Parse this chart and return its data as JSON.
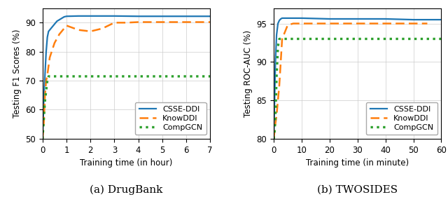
{
  "left": {
    "title": "(a) DrugBank",
    "xlabel": "Training time (in hour)",
    "ylabel": "Testing F1 Scores (%)",
    "xlim": [
      0,
      7
    ],
    "ylim": [
      50,
      95
    ],
    "yticks": [
      50,
      60,
      70,
      80,
      90
    ],
    "xticks": [
      0,
      1,
      2,
      3,
      4,
      5,
      6,
      7
    ],
    "csse_x": [
      0,
      0.05,
      0.1,
      0.15,
      0.2,
      0.25,
      0.3,
      0.4,
      0.5,
      0.6,
      0.7,
      0.8,
      0.9,
      1.0,
      1.5,
      2.0,
      2.5,
      3.0,
      4.0,
      5.0,
      6.0,
      7.0
    ],
    "csse_y": [
      50,
      63,
      72,
      80,
      85,
      87,
      87.5,
      88.5,
      89.5,
      90.5,
      91,
      91.5,
      92,
      92.2,
      92.3,
      92.3,
      92.3,
      92.3,
      92.2,
      92.2,
      92.2,
      92.2
    ],
    "know_x": [
      0,
      0.05,
      0.1,
      0.15,
      0.2,
      0.3,
      0.5,
      0.7,
      0.9,
      1.0,
      1.5,
      2.0,
      2.5,
      3.0,
      3.5,
      4.0,
      5.0,
      6.0,
      7.0
    ],
    "know_y": [
      50,
      55,
      65,
      70,
      72,
      78,
      83,
      86,
      88,
      89,
      87.5,
      87,
      88,
      90,
      90,
      90.2,
      90.2,
      90.2,
      90.2
    ],
    "comp_x": [
      0,
      0.1,
      0.2,
      0.25,
      7.0
    ],
    "comp_y": [
      50,
      63,
      70,
      71.5,
      71.5
    ]
  },
  "right": {
    "title": "(b) TWOSIDES",
    "xlabel": "Training time (in minute)",
    "ylabel": "Testing ROC-AUC (%)",
    "xlim": [
      0,
      60
    ],
    "ylim": [
      80,
      97
    ],
    "yticks": [
      80,
      85,
      90,
      95
    ],
    "xticks": [
      0,
      10,
      20,
      30,
      40,
      50,
      60
    ],
    "csse_x": [
      0,
      0.3,
      0.6,
      1.0,
      1.5,
      2.0,
      2.5,
      3.0,
      5.0,
      10,
      20,
      30,
      40,
      50,
      60
    ],
    "csse_y": [
      80,
      85,
      90,
      93.5,
      95.0,
      95.4,
      95.6,
      95.7,
      95.7,
      95.7,
      95.6,
      95.6,
      95.6,
      95.5,
      95.5
    ],
    "know_x": [
      0,
      0.3,
      0.6,
      1.0,
      1.5,
      2.0,
      2.5,
      3.0,
      5.0,
      7.0,
      10,
      20,
      30,
      40,
      50,
      55
    ],
    "know_y": [
      80,
      81,
      82,
      83,
      85,
      87,
      90,
      93,
      94.8,
      95.0,
      95.0,
      95.0,
      95.0,
      95.0,
      95.0,
      95.0
    ],
    "comp_x": [
      0,
      0.3,
      0.6,
      1.0,
      1.5,
      2.0,
      3.0,
      5.0,
      60
    ],
    "comp_y": [
      80,
      81,
      83,
      88,
      92.0,
      93.0,
      93.0,
      93.0,
      93.0
    ]
  },
  "colors": {
    "csse": "#1f77b4",
    "know": "#ff7f0e",
    "comp": "#2ca02c"
  },
  "legend_labels": [
    "CSSE-DDI",
    "KnowDDI",
    "CompGCN"
  ],
  "caption_fontsize": 11,
  "axis_label_fontsize": 8.5,
  "tick_fontsize": 8.5,
  "legend_fontsize": 8
}
